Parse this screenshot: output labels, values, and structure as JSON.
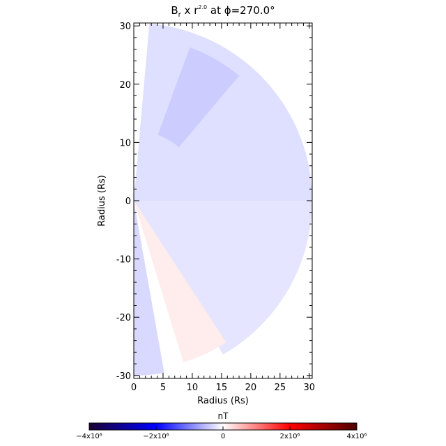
{
  "chart_data": {
    "type": "heatmap",
    "title": "Bᵣ x r²⋅⁰ at ϕ=270.0°",
    "title_parts": {
      "var": "B",
      "var_sub": "r",
      "mid": " x r",
      "exp": "2.0",
      "tail": " at ϕ=270.0°"
    },
    "xlabel": "Radius (Rs)",
    "ylabel": "Radius (Rs)",
    "xlim": [
      0,
      30.5
    ],
    "ylim": [
      -30.5,
      30.5
    ],
    "xticks": [
      0,
      5,
      10,
      15,
      20,
      25,
      30
    ],
    "yticks": [
      -30,
      -20,
      -10,
      0,
      10,
      20,
      30
    ],
    "field_regions": [
      {
        "name": "upper-sector",
        "theta_deg": [
          0,
          85
        ],
        "r": [
          0,
          30.5
        ],
        "value": -250000
      },
      {
        "name": "upper-inner-band",
        "theta_deg": [
          50,
          70
        ],
        "r": [
          12,
          28
        ],
        "value": -400000
      },
      {
        "name": "lower-sector",
        "theta_deg": [
          -60,
          0
        ],
        "r": [
          0,
          30.5
        ],
        "value": -200000
      },
      {
        "name": "lower-positive-wedge",
        "theta_deg": [
          -73,
          -57
        ],
        "r": [
          0,
          29
        ],
        "value": 150000
      },
      {
        "name": "lower-left-band",
        "theta_deg": [
          -90,
          -80
        ],
        "r": [
          0,
          30
        ],
        "value": -300000
      }
    ],
    "colorbar": {
      "label": "nT",
      "range": [
        -4000000,
        4000000
      ],
      "ticks": [
        {
          "value": -4000000,
          "label": "−4x10⁶"
        },
        {
          "value": -2000000,
          "label": "−2x10⁶"
        },
        {
          "value": 0,
          "label": "0"
        },
        {
          "value": 2000000,
          "label": "2x10⁶"
        },
        {
          "value": 4000000,
          "label": "4x10⁶"
        }
      ],
      "colors": [
        "#1a0033",
        "#0000ff",
        "#ffffff",
        "#ff0000",
        "#4d0000"
      ]
    }
  }
}
